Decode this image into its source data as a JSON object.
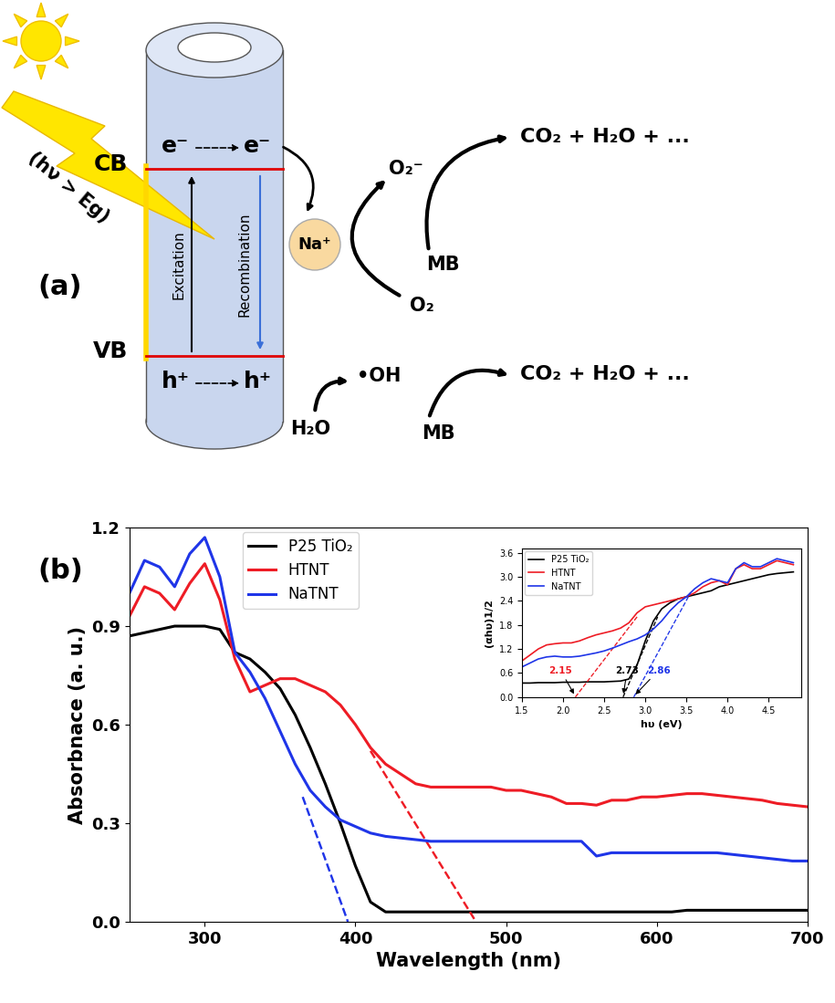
{
  "panel_labels": [
    "(a)",
    "(b)"
  ],
  "diagram": {
    "light": "(hν > Eg)",
    "cb": "CB",
    "vb": "VB",
    "electron": "e⁻",
    "hole": "h⁺",
    "excitation": "Excitation",
    "recombination": "Recombination",
    "cation": "Na⁺",
    "superoxide": "O₂⁻",
    "oxygen": "O₂",
    "water": "H₂O",
    "hydroxyl": "•OH",
    "pollutant": "MB",
    "products": "CO₂ + H₂O + ..."
  },
  "chart_data": [
    {
      "type": "line",
      "x_label": "Wavelength (nm)",
      "y_label": "Absorbnace (a. u.)",
      "x": [
        250,
        260,
        270,
        280,
        290,
        300,
        310,
        320,
        330,
        340,
        350,
        360,
        370,
        380,
        390,
        400,
        410,
        420,
        430,
        440,
        450,
        460,
        470,
        480,
        490,
        500,
        510,
        520,
        530,
        540,
        550,
        560,
        570,
        580,
        590,
        600,
        610,
        620,
        630,
        640,
        650,
        660,
        670,
        680,
        690,
        700
      ],
      "xlim": [
        250,
        700
      ],
      "xticks": [
        300,
        400,
        500,
        600,
        700
      ],
      "ylim": [
        0.0,
        1.2
      ],
      "yticks": [
        0.0,
        0.3,
        0.6,
        0.9,
        1.2
      ],
      "legend": "upper left",
      "series": [
        {
          "name": "P25 TiO₂",
          "color": "#000000",
          "values": [
            0.87,
            0.88,
            0.89,
            0.9,
            0.9,
            0.9,
            0.89,
            0.82,
            0.8,
            0.76,
            0.71,
            0.63,
            0.53,
            0.42,
            0.3,
            0.17,
            0.06,
            0.03,
            0.03,
            0.03,
            0.03,
            0.03,
            0.03,
            0.03,
            0.03,
            0.03,
            0.03,
            0.03,
            0.03,
            0.03,
            0.03,
            0.03,
            0.03,
            0.03,
            0.03,
            0.03,
            0.03,
            0.035,
            0.035,
            0.035,
            0.035,
            0.035,
            0.035,
            0.035,
            0.035,
            0.035
          ]
        },
        {
          "name": "HTNT",
          "color": "#ee1c25",
          "values": [
            0.93,
            1.02,
            1.0,
            0.95,
            1.03,
            1.09,
            0.98,
            0.8,
            0.7,
            0.72,
            0.74,
            0.74,
            0.72,
            0.7,
            0.66,
            0.6,
            0.53,
            0.48,
            0.45,
            0.42,
            0.41,
            0.41,
            0.41,
            0.41,
            0.41,
            0.4,
            0.4,
            0.39,
            0.38,
            0.36,
            0.36,
            0.355,
            0.37,
            0.37,
            0.38,
            0.38,
            0.385,
            0.39,
            0.39,
            0.385,
            0.38,
            0.375,
            0.37,
            0.36,
            0.355,
            0.35
          ],
          "tangent_x": [
            410,
            480
          ],
          "tangent_y": [
            0.52,
            0.0
          ]
        },
        {
          "name": "NaTNT",
          "color": "#1f35e8",
          "values": [
            1.0,
            1.1,
            1.08,
            1.02,
            1.12,
            1.17,
            1.05,
            0.82,
            0.76,
            0.68,
            0.58,
            0.48,
            0.4,
            0.35,
            0.31,
            0.29,
            0.27,
            0.26,
            0.255,
            0.25,
            0.245,
            0.245,
            0.245,
            0.245,
            0.245,
            0.245,
            0.245,
            0.245,
            0.245,
            0.245,
            0.245,
            0.2,
            0.21,
            0.21,
            0.21,
            0.21,
            0.21,
            0.21,
            0.21,
            0.21,
            0.205,
            0.2,
            0.195,
            0.19,
            0.185,
            0.185
          ],
          "tangent_x": [
            365,
            395
          ],
          "tangent_y": [
            0.38,
            0.0
          ]
        }
      ]
    },
    {
      "type": "line",
      "x_label": "hυ (eV)",
      "y_label": "(αhυ)1/2",
      "x": [
        1.5,
        1.6,
        1.7,
        1.8,
        1.9,
        2.0,
        2.1,
        2.2,
        2.3,
        2.4,
        2.5,
        2.6,
        2.7,
        2.8,
        2.9,
        3.0,
        3.1,
        3.2,
        3.3,
        3.4,
        3.5,
        3.6,
        3.7,
        3.8,
        3.9,
        4.0,
        4.1,
        4.2,
        4.3,
        4.4,
        4.5,
        4.6,
        4.7,
        4.8
      ],
      "xlim": [
        1.5,
        4.9
      ],
      "xticks": [
        1.5,
        2.0,
        2.5,
        3.0,
        3.5,
        4.0,
        4.5
      ],
      "ylim": [
        0.0,
        3.7
      ],
      "yticks": [
        0.0,
        0.6,
        1.2,
        1.8,
        2.4,
        3.0,
        3.6
      ],
      "legend": "upper left",
      "series": [
        {
          "name": "P25 TiO₂",
          "color": "#000000",
          "values": [
            0.35,
            0.35,
            0.36,
            0.36,
            0.36,
            0.37,
            0.37,
            0.37,
            0.38,
            0.38,
            0.38,
            0.39,
            0.4,
            0.45,
            0.8,
            1.4,
            1.9,
            2.2,
            2.35,
            2.45,
            2.5,
            2.55,
            2.6,
            2.65,
            2.75,
            2.8,
            2.85,
            2.9,
            2.95,
            3.0,
            3.05,
            3.08,
            3.1,
            3.12
          ],
          "tangent_x": [
            2.73,
            3.15
          ],
          "tangent_y": [
            0.0,
            2.0
          ],
          "band_gap": 2.73
        },
        {
          "name": "HTNT",
          "color": "#ee1c25",
          "values": [
            0.9,
            1.05,
            1.2,
            1.3,
            1.33,
            1.35,
            1.35,
            1.4,
            1.48,
            1.55,
            1.6,
            1.65,
            1.72,
            1.85,
            2.1,
            2.25,
            2.3,
            2.35,
            2.4,
            2.45,
            2.5,
            2.6,
            2.75,
            2.85,
            2.9,
            2.8,
            3.2,
            3.3,
            3.2,
            3.2,
            3.3,
            3.4,
            3.35,
            3.3
          ],
          "tangent_x": [
            2.15,
            2.9
          ],
          "tangent_y": [
            0.0,
            2.0
          ],
          "band_gap": 2.15
        },
        {
          "name": "NaTNT",
          "color": "#1f35e8",
          "values": [
            0.75,
            0.85,
            0.95,
            1.0,
            1.02,
            1.0,
            1.0,
            1.02,
            1.06,
            1.1,
            1.15,
            1.22,
            1.3,
            1.38,
            1.45,
            1.55,
            1.7,
            1.9,
            2.15,
            2.35,
            2.5,
            2.7,
            2.85,
            2.95,
            2.9,
            2.85,
            3.2,
            3.35,
            3.25,
            3.25,
            3.35,
            3.45,
            3.4,
            3.35
          ],
          "tangent_x": [
            2.86,
            3.55
          ],
          "tangent_y": [
            0.0,
            2.6
          ],
          "band_gap": 2.86
        }
      ]
    }
  ]
}
